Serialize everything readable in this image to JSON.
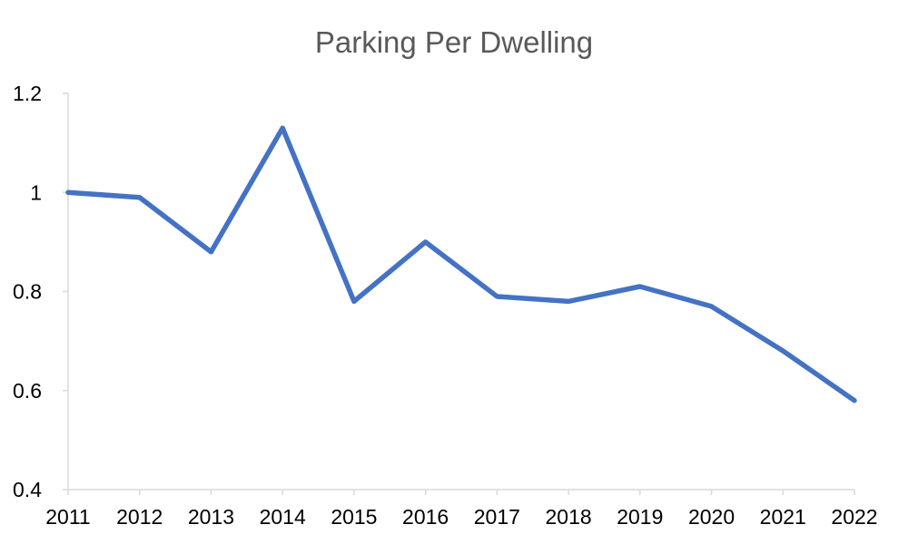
{
  "chart_data": {
    "type": "line",
    "title": "Parking Per Dwelling",
    "xlabel": "",
    "ylabel": "",
    "categories": [
      "2011",
      "2012",
      "2013",
      "2014",
      "2015",
      "2016",
      "2017",
      "2018",
      "2019",
      "2020",
      "2021",
      "2022"
    ],
    "series": [
      {
        "values": [
          1.0,
          0.99,
          0.88,
          1.13,
          0.78,
          0.9,
          0.79,
          0.78,
          0.81,
          0.77,
          0.68,
          0.58
        ],
        "color": "#4472c4"
      }
    ],
    "ylim": [
      0.4,
      1.2
    ],
    "yticks": [
      "0.4",
      "0.6",
      "0.8",
      "1",
      "1.2"
    ],
    "grid": false,
    "legend": "none"
  }
}
